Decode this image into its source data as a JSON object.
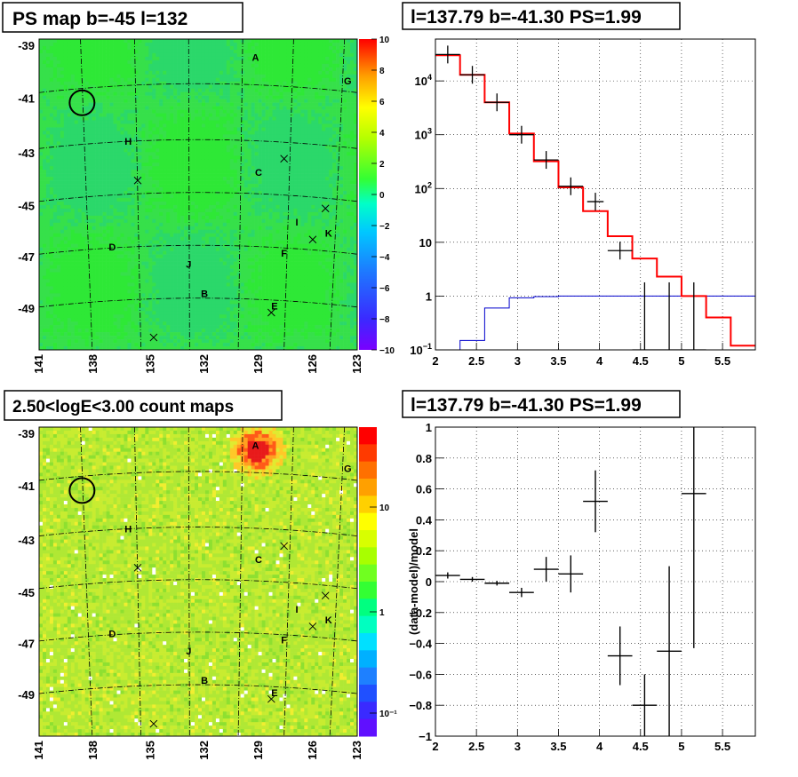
{
  "panels": {
    "ps_map": {
      "title": "PS map b=-45 l=132",
      "y_ticks": [
        "-39",
        "-41",
        "-43",
        "-45",
        "-47",
        "-49"
      ],
      "x_ticks": [
        "141",
        "138",
        "135",
        "132",
        "129",
        "126",
        "123"
      ],
      "colorbar_ticks": [
        "10",
        "8",
        "6",
        "4",
        "2",
        "0",
        "−2",
        "−4",
        "−6",
        "−8",
        "−10"
      ],
      "sources": [
        "A",
        "G",
        "H",
        "C",
        "I",
        "K",
        "D",
        "F",
        "J",
        "B",
        "E"
      ]
    },
    "count_map": {
      "title": "2.50<logE<3.00 count maps",
      "y_ticks": [
        "-39",
        "-41",
        "-43",
        "-45",
        "-47",
        "-49"
      ],
      "x_ticks": [
        "141",
        "138",
        "135",
        "132",
        "129",
        "126",
        "123"
      ],
      "colorbar_ticks": [
        "10",
        "1",
        "10⁻¹"
      ],
      "sources": [
        "A",
        "G",
        "H",
        "C",
        "I",
        "K",
        "D",
        "F",
        "J",
        "B",
        "E"
      ]
    },
    "spectrum": {
      "title": "l=137.79 b=-41.30 PS=1.99"
    },
    "residual": {
      "title": "l=137.79 b=-41.30 PS=1.99"
    }
  },
  "colors": {
    "model": "#ff0000",
    "background": "#0000cc",
    "data": "#000000",
    "map_green": "#33dd33",
    "count_yellow": "#c8ee33"
  },
  "chart_data": [
    {
      "type": "heatmap",
      "title": "PS map b=-45 l=132",
      "xlabel": "",
      "ylabel": "",
      "x_ticks": [
        141,
        138,
        135,
        132,
        129,
        126,
        123
      ],
      "y_ticks": [
        -39,
        -41,
        -43,
        -45,
        -47,
        -49
      ],
      "colorbar_range": [
        -10,
        10
      ],
      "sources": [
        "A",
        "G",
        "H",
        "C",
        "I",
        "K",
        "D",
        "F",
        "J",
        "B",
        "E"
      ]
    },
    {
      "type": "line",
      "title": "l=137.79 b=-41.30 PS=1.99",
      "xlabel": "",
      "ylabel": "",
      "xlim": [
        2,
        5.9
      ],
      "ylim": [
        0.1,
        60000
      ],
      "yscale": "log",
      "x_ticks": [
        2,
        2.5,
        3,
        3.5,
        4,
        4.5,
        5,
        5.5
      ],
      "y_ticks": [
        "10^-1",
        "1",
        "10",
        "10^2",
        "10^3",
        "10^4"
      ],
      "grid": true,
      "model_bins": [
        2.0,
        2.3,
        2.6,
        2.9,
        3.2,
        3.5,
        3.8,
        4.1,
        4.4,
        4.7,
        5.0,
        5.3,
        5.6,
        5.9
      ],
      "model_values": [
        30000,
        13000,
        4000,
        1050,
        320,
        105,
        38,
        13,
        5,
        2.3,
        1.0,
        0.4,
        0.12
      ],
      "background_bins": [
        2.0,
        2.3,
        2.6,
        2.9,
        3.2,
        3.5,
        3.8,
        4.1,
        4.4,
        4.7,
        5.0,
        5.3,
        5.6,
        5.9
      ],
      "background_values": [
        0.05,
        0.15,
        0.6,
        0.93,
        0.98,
        1.0,
        1.0,
        1.0,
        1.0,
        1.0,
        1.0,
        1.0,
        1.0
      ],
      "data_points": [
        {
          "x": 2.15,
          "y": 31000,
          "xerr": 0.15
        },
        {
          "x": 2.45,
          "y": 13000,
          "xerr": 0.15
        },
        {
          "x": 2.75,
          "y": 4000,
          "xerr": 0.15
        },
        {
          "x": 3.05,
          "y": 1000,
          "xerr": 0.15
        },
        {
          "x": 3.35,
          "y": 340,
          "xerr": 0.15
        },
        {
          "x": 3.65,
          "y": 110,
          "xerr": 0.15
        },
        {
          "x": 3.95,
          "y": 57,
          "xerr": 0.1
        },
        {
          "x": 4.25,
          "y": 7,
          "xerr": 0.15
        },
        {
          "x": 4.55,
          "y": 0.1,
          "xerr": 0.15
        },
        {
          "x": 4.85,
          "y": 0.1,
          "xerr": 0.15
        },
        {
          "x": 5.15,
          "y": 0.1,
          "xerr": 0.15
        }
      ]
    },
    {
      "type": "heatmap",
      "title": "2.50<logE<3.00 count maps",
      "xlabel": "",
      "ylabel": "",
      "x_ticks": [
        141,
        138,
        135,
        132,
        129,
        126,
        123
      ],
      "y_ticks": [
        -39,
        -41,
        -43,
        -45,
        -47,
        -49
      ],
      "colorbar_scale": "log",
      "sources": [
        "A",
        "G",
        "H",
        "C",
        "I",
        "K",
        "D",
        "F",
        "J",
        "B",
        "E"
      ]
    },
    {
      "type": "scatter",
      "title": "l=137.79 b=-41.30 PS=1.99",
      "xlabel": "",
      "ylabel": "(data-model)/model",
      "xlim": [
        2,
        5.9
      ],
      "ylim": [
        -1,
        1
      ],
      "x_ticks": [
        2,
        2.5,
        3,
        3.5,
        4,
        4.5,
        5,
        5.5
      ],
      "y_ticks": [
        -1,
        -0.8,
        -0.6,
        -0.4,
        -0.2,
        0,
        0.2,
        0.4,
        0.6,
        0.8,
        1
      ],
      "grid": true,
      "points": [
        {
          "x": 2.15,
          "y": 0.04,
          "xerr": 0.15,
          "yerr": 0.02
        },
        {
          "x": 2.45,
          "y": 0.015,
          "xerr": 0.15,
          "yerr": 0.015
        },
        {
          "x": 2.75,
          "y": -0.01,
          "xerr": 0.15,
          "yerr": 0.015
        },
        {
          "x": 3.05,
          "y": -0.07,
          "xerr": 0.15,
          "yerr": 0.03
        },
        {
          "x": 3.35,
          "y": 0.08,
          "xerr": 0.15,
          "yerr": 0.08
        },
        {
          "x": 3.65,
          "y": 0.05,
          "xerr": 0.15,
          "yerr": 0.12
        },
        {
          "x": 3.95,
          "y": 0.52,
          "xerr": 0.15,
          "yerr": 0.2
        },
        {
          "x": 4.25,
          "y": -0.48,
          "xerr": 0.15,
          "yerr": 0.19
        },
        {
          "x": 4.55,
          "y": -0.8,
          "xerr": 0.15,
          "yerr": 0.2
        },
        {
          "x": 4.85,
          "y": -0.45,
          "xerr": 0.15,
          "yerr": 0.55
        },
        {
          "x": 5.15,
          "y": 0.57,
          "xerr": 0.15,
          "yerr": 1.0
        }
      ]
    }
  ]
}
